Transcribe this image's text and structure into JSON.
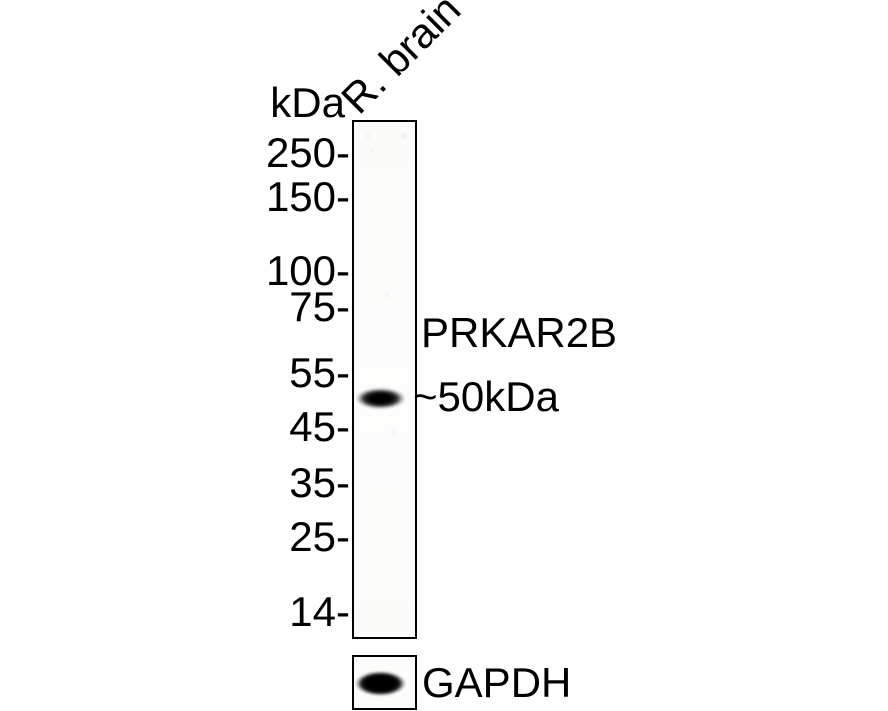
{
  "figure": {
    "type": "western-blot",
    "unit_label": "kDa",
    "lane_label": "R. brain",
    "ladder_markers": [
      "250-",
      "150-",
      "100-",
      "75-",
      "55-",
      "45-",
      "35-",
      "25-",
      "14-"
    ],
    "annotations": {
      "target_label": "PRKAR2B",
      "observed_mw_label": "~50kDa"
    },
    "loading_control_label": "GAPDH",
    "bands": {
      "target": {
        "lane": "R. brain",
        "approx_position": "between 55 and 45 kDa markers",
        "intensity": "strong"
      },
      "loading_control": {
        "lane": "R. brain",
        "intensity": "strong"
      }
    },
    "colors": {
      "background": "#ffffff",
      "text": "#000000",
      "band": "#000000",
      "lane_border": "#000000",
      "lane_background": "#fcfcfb"
    }
  }
}
